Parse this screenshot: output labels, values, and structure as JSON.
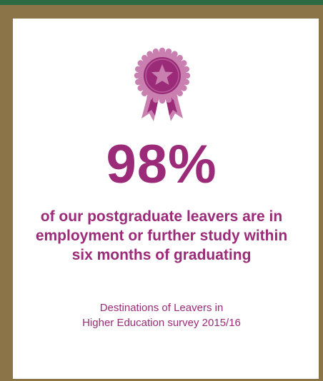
{
  "stat": {
    "value": "98%",
    "statement": "of our postgraduate leavers are in employment or further study within six months of graduating",
    "source_line1": "Destinations of Leavers in",
    "source_line2": "Higher Education survey 2015/16"
  },
  "icon": "award-ribbon-star-icon",
  "colors": {
    "accent": "#9b2a78",
    "rosette_light": "#c97fb0",
    "border": "#8a7448",
    "background": "#2e6b45"
  }
}
